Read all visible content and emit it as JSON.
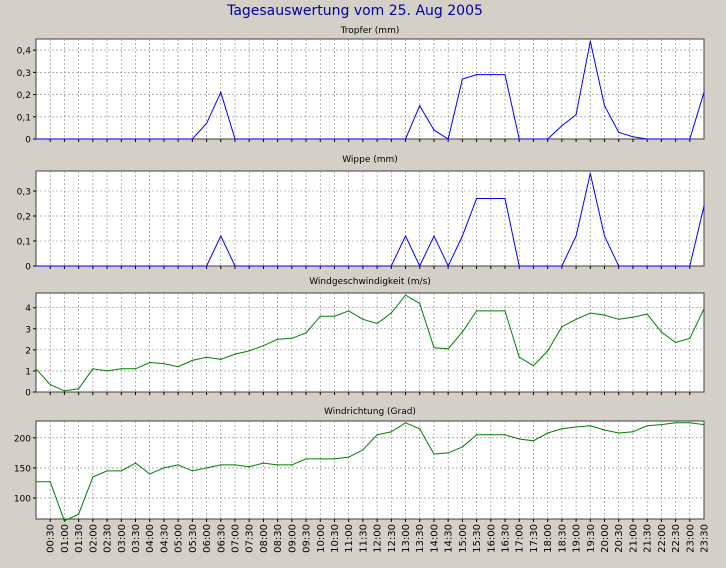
{
  "title": "Tagesauswertung vom 25. Aug 2005",
  "colors": {
    "background": "#d4d0c8",
    "plot_area": "#ffffff",
    "grid": "#808080",
    "rain_series": "#0000ff",
    "wind_series": "#008000",
    "title_text": "#0000a0"
  },
  "chart_data": [
    {
      "type": "line",
      "title": "Tropfer (mm)",
      "ylim": [
        0,
        0.45
      ],
      "yticks": [
        0,
        0.1,
        0.2,
        0.3,
        0.4
      ],
      "ytick_labels": [
        "0",
        "0,1",
        "0,2",
        "0,3",
        "0,4"
      ],
      "grid": true,
      "color": "rain_series",
      "x": [
        0,
        0.5,
        1,
        1.5,
        2,
        2.5,
        3,
        3.5,
        4,
        4.5,
        5,
        5.5,
        6,
        6.5,
        7,
        7.5,
        8,
        8.5,
        9,
        9.5,
        10,
        10.5,
        11,
        11.5,
        12,
        12.5,
        13,
        13.5,
        14,
        14.5,
        15,
        15.5,
        16,
        16.5,
        17,
        17.5,
        18,
        18.5,
        19,
        19.5,
        20,
        20.5,
        21,
        21.5,
        22,
        22.5,
        23,
        23.5
      ],
      "values": [
        0,
        0,
        0,
        0,
        0,
        0,
        0,
        0,
        0,
        0,
        0,
        0,
        0.07,
        0.21,
        0,
        0,
        0,
        0,
        0,
        0,
        0,
        0,
        0,
        0,
        0,
        0,
        0,
        0.15,
        0.04,
        0,
        0.27,
        0.29,
        0.29,
        0.29,
        0,
        0,
        0,
        0.06,
        0.11,
        0.44,
        0.15,
        0.03,
        0.01,
        0,
        0,
        0,
        0,
        0.21
      ]
    },
    {
      "type": "line",
      "title": "Wippe (mm)",
      "ylim": [
        0,
        0.38
      ],
      "yticks": [
        0,
        0.1,
        0.2,
        0.3
      ],
      "ytick_labels": [
        "0",
        "0,1",
        "0,2",
        "0,3"
      ],
      "grid": true,
      "color": "rain_series",
      "x": [
        0,
        0.5,
        1,
        1.5,
        2,
        2.5,
        3,
        3.5,
        4,
        4.5,
        5,
        5.5,
        6,
        6.5,
        7,
        7.5,
        8,
        8.5,
        9,
        9.5,
        10,
        10.5,
        11,
        11.5,
        12,
        12.5,
        13,
        13.5,
        14,
        14.5,
        15,
        15.5,
        16,
        16.5,
        17,
        17.5,
        18,
        18.5,
        19,
        19.5,
        20,
        20.5,
        21,
        21.5,
        22,
        22.5,
        23,
        23.5
      ],
      "values": [
        0,
        0,
        0,
        0,
        0,
        0,
        0,
        0,
        0,
        0,
        0,
        0,
        0,
        0.12,
        0,
        0,
        0,
        0,
        0,
        0,
        0,
        0,
        0,
        0,
        0,
        0,
        0.12,
        0,
        0.12,
        0,
        0.12,
        0.27,
        0.27,
        0.27,
        0,
        0,
        0,
        0,
        0.12,
        0.37,
        0.12,
        0,
        0,
        0,
        0,
        0,
        0,
        0.24
      ]
    },
    {
      "type": "line",
      "title": "Windgeschwindigkeit (m/s)",
      "ylim": [
        0,
        4.7
      ],
      "yticks": [
        0,
        1,
        2,
        3,
        4
      ],
      "ytick_labels": [
        "0",
        "1",
        "2",
        "3",
        "4"
      ],
      "grid": true,
      "color": "wind_series",
      "x": [
        0,
        0.5,
        1,
        1.5,
        2,
        2.5,
        3,
        3.5,
        4,
        4.5,
        5,
        5.5,
        6,
        6.5,
        7,
        7.5,
        8,
        8.5,
        9,
        9.5,
        10,
        10.5,
        11,
        11.5,
        12,
        12.5,
        13,
        13.5,
        14,
        14.5,
        15,
        15.5,
        16,
        16.5,
        17,
        17.5,
        18,
        18.5,
        19,
        19.5,
        20,
        20.5,
        21,
        21.5,
        22,
        22.5,
        23,
        23.5
      ],
      "values": [
        1.1,
        0.35,
        0.05,
        0.15,
        1.1,
        1.0,
        1.1,
        1.1,
        1.4,
        1.35,
        1.2,
        1.5,
        1.65,
        1.55,
        1.8,
        1.95,
        2.2,
        2.5,
        2.55,
        2.8,
        3.6,
        3.6,
        3.85,
        3.45,
        3.25,
        3.75,
        4.6,
        4.2,
        2.1,
        2.05,
        2.85,
        3.85,
        3.85,
        3.85,
        1.65,
        1.25,
        1.95,
        3.1,
        3.45,
        3.75,
        3.65,
        3.45,
        3.55,
        3.7,
        2.85,
        2.35,
        2.55,
        3.95
      ]
    },
    {
      "type": "line",
      "title": "Windrichtung (Grad)",
      "ylim": [
        65,
        228
      ],
      "yticks": [
        100,
        150,
        200
      ],
      "ytick_labels": [
        "100",
        "150",
        "200"
      ],
      "grid": true,
      "color": "wind_series",
      "x": [
        0,
        0.5,
        1,
        1.5,
        2,
        2.5,
        3,
        3.5,
        4,
        4.5,
        5,
        5.5,
        6,
        6.5,
        7,
        7.5,
        8,
        8.5,
        9,
        9.5,
        10,
        10.5,
        11,
        11.5,
        12,
        12.5,
        13,
        13.5,
        14,
        14.5,
        15,
        15.5,
        16,
        16.5,
        17,
        17.5,
        18,
        18.5,
        19,
        19.5,
        20,
        20.5,
        21,
        21.5,
        22,
        22.5,
        23,
        23.5
      ],
      "values": [
        127,
        127,
        62,
        73,
        135,
        145,
        145,
        158,
        140,
        150,
        155,
        145,
        150,
        155,
        155,
        152,
        158,
        155,
        155,
        165,
        165,
        165,
        168,
        180,
        205,
        210,
        225,
        215,
        173,
        175,
        185,
        205,
        205,
        205,
        198,
        195,
        208,
        215,
        218,
        220,
        213,
        208,
        210,
        220,
        222,
        225,
        225,
        222
      ]
    }
  ],
  "x_axis": {
    "tick_labels": [
      "00:30",
      "01:00",
      "01:30",
      "02:00",
      "02:30",
      "03:00",
      "03:30",
      "04:00",
      "04:30",
      "05:00",
      "05:30",
      "06:00",
      "06:30",
      "07:00",
      "07:30",
      "08:00",
      "08:30",
      "09:00",
      "09:30",
      "10:00",
      "10:30",
      "11:00",
      "11:30",
      "12:00",
      "12:30",
      "13:00",
      "13:30",
      "14:00",
      "14:30",
      "15:00",
      "15:30",
      "16:00",
      "16:30",
      "17:00",
      "17:30",
      "18:00",
      "18:30",
      "19:00",
      "19:30",
      "20:00",
      "20:30",
      "21:00",
      "21:30",
      "22:00",
      "22:30",
      "23:00",
      "23:30"
    ],
    "xlim": [
      0,
      23.5
    ]
  }
}
